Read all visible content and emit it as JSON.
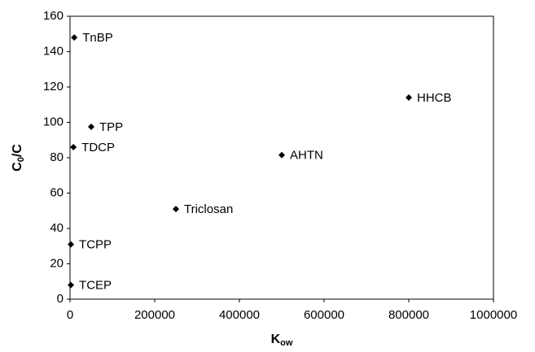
{
  "chart_data": {
    "type": "scatter",
    "xlabel": [
      "K",
      "ow"
    ],
    "ylabel": [
      "C",
      "0",
      "/C"
    ],
    "x": [
      10000,
      50000,
      8000,
      250000,
      500000,
      800000,
      2000,
      2000
    ],
    "values": [
      148,
      97.5,
      86,
      51,
      81.5,
      114,
      31,
      8
    ],
    "labels": [
      "TnBP",
      "TPP",
      "TDCP",
      "Triclosan",
      "AHTN",
      "HHCB",
      "TCPP",
      "TCEP"
    ],
    "color": "#000000",
    "xlim": [
      0,
      1000000
    ],
    "xticks": [
      0,
      200000,
      400000,
      600000,
      800000,
      1000000
    ],
    "ylim": [
      0,
      160
    ],
    "yticks": [
      0,
      20,
      40,
      60,
      80,
      100,
      120,
      140,
      160
    ],
    "grid": false
  }
}
